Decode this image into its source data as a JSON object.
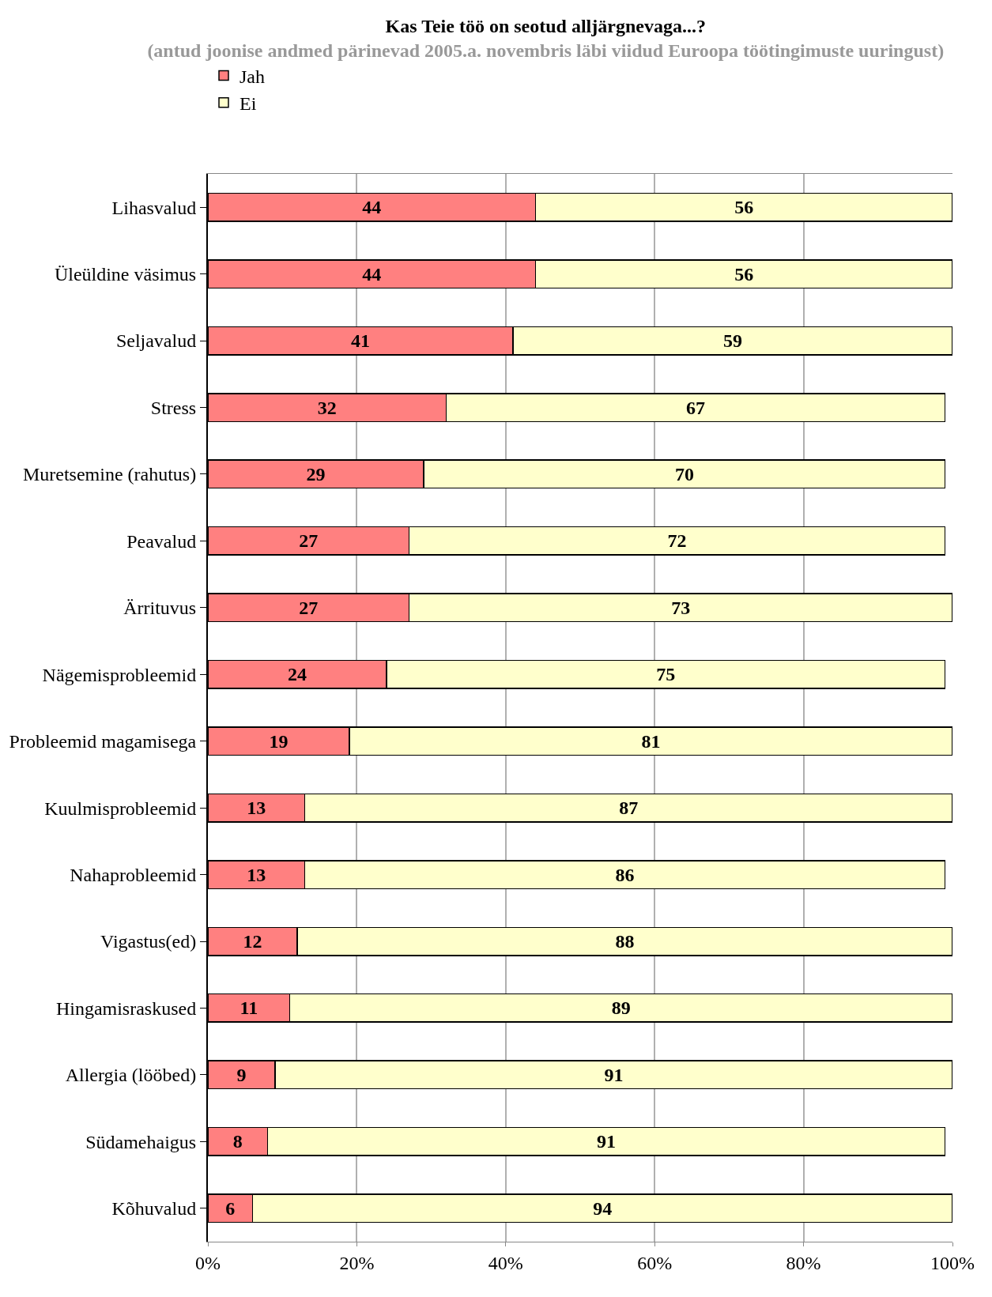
{
  "chart_data": {
    "type": "bar",
    "orientation": "horizontal",
    "stacked": true,
    "title": "Kas Teie töö on seotud alljärgnevaga...?",
    "subtitle": "(antud joonise andmed pärinevad 2005.a. novembris läbi viidud Euroopa töötingimuste uuringust)",
    "categories": [
      "Lihasvalud",
      "Üleüldine väsimus",
      "Seljavalud",
      "Stress",
      "Muretsemine (rahutus)",
      "Peavalud",
      "Ärrituvus",
      "Nägemisprobleemid",
      "Probleemid magamisega",
      "Kuulmisprobleemid",
      "Nahaprobleemid",
      "Vigastus(ed)",
      "Hingamisraskused",
      "Allergia (lööbed)",
      "Südamehaigus",
      "Kõhuvalud"
    ],
    "series": [
      {
        "name": "Jah",
        "color": "#ff8080",
        "values": [
          44,
          44,
          41,
          32,
          29,
          27,
          27,
          24,
          19,
          13,
          13,
          12,
          11,
          9,
          8,
          6
        ]
      },
      {
        "name": "Ei",
        "color": "#ffffcc",
        "values": [
          56,
          56,
          59,
          67,
          70,
          72,
          73,
          75,
          81,
          87,
          86,
          88,
          89,
          91,
          91,
          94
        ]
      }
    ],
    "xlim": [
      0,
      100
    ],
    "xticks": [
      {
        "value": 0,
        "label": "0%"
      },
      {
        "value": 20,
        "label": "20%"
      },
      {
        "value": 40,
        "label": "40%"
      },
      {
        "value": 60,
        "label": "60%"
      },
      {
        "value": 80,
        "label": "80%"
      },
      {
        "value": 100,
        "label": "100%"
      }
    ],
    "grid": "x",
    "legend": "top",
    "data_labels": true
  }
}
